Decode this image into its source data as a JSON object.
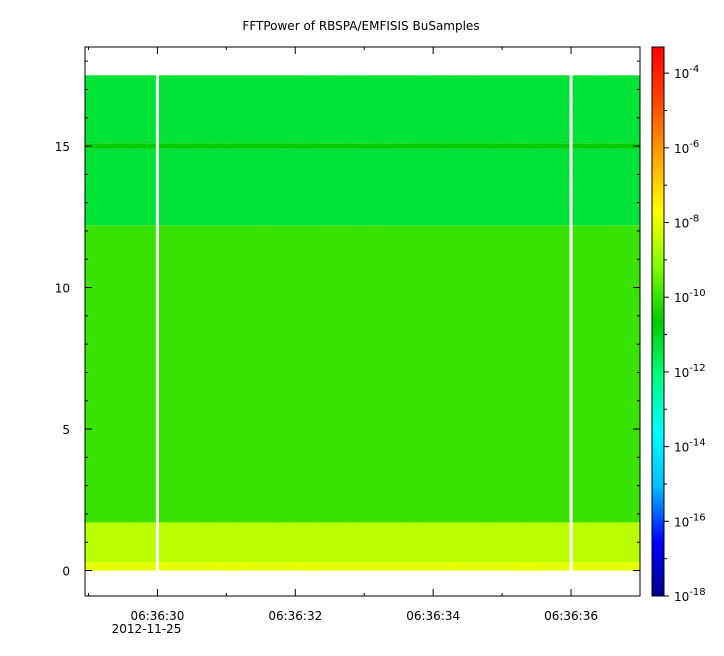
{
  "chart_data": {
    "type": "heatmap",
    "title": "FFTPower of RBSPA/EMFISIS  BuSamples",
    "xlabel": "",
    "ylabel": "",
    "x_ticks": [
      {
        "label": "06:36:30",
        "value": 30,
        "sublabel": "2012-11-25"
      },
      {
        "label": "06:36:32",
        "value": 32
      },
      {
        "label": "06:36:34",
        "value": 34
      },
      {
        "label": "06:36:36",
        "value": 36
      }
    ],
    "x_minor_ticks": [
      29,
      31,
      33,
      35,
      37
    ],
    "xlim": [
      28.95,
      37.0
    ],
    "y_ticks": [
      {
        "label": "0",
        "value": 0
      },
      {
        "label": "5",
        "value": 5
      },
      {
        "label": "10",
        "value": 10
      },
      {
        "label": "15",
        "value": 15
      }
    ],
    "ylim": [
      -0.9,
      18.5
    ],
    "data_ymax": 17.5,
    "gaps_seconds": [
      30.0,
      36.0
    ],
    "bands": [
      {
        "y_from": 0.0,
        "y_to": 0.3,
        "log_power": -8.0
      },
      {
        "y_from": 0.3,
        "y_to": 1.7,
        "log_power": -8.5
      },
      {
        "y_from": 1.7,
        "y_to": 12.2,
        "log_power": -10.0
      },
      {
        "y_from": 12.2,
        "y_to": 14.9,
        "log_power": -11.3
      },
      {
        "y_from": 14.9,
        "y_to": 15.1,
        "log_power": -10.6
      },
      {
        "y_from": 15.1,
        "y_to": 17.5,
        "log_power": -11.3
      }
    ],
    "colorbar": {
      "scale": "log",
      "range": [
        -18,
        -3.3
      ],
      "tick_exponents": [
        -4,
        -6,
        -8,
        -10,
        -12,
        -14,
        -16,
        -18
      ],
      "tick_base": "10",
      "colors": [
        "#00008b",
        "#0000ff",
        "#00bfff",
        "#00ffff",
        "#00ff7f",
        "#00cc00",
        "#7fff00",
        "#ffff00",
        "#ffa500",
        "#ff4500",
        "#ff0000"
      ]
    },
    "grid": false,
    "legend": "colorbar-right"
  }
}
